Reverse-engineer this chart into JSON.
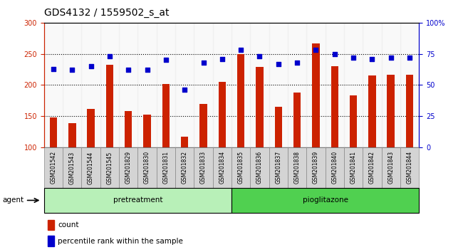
{
  "title": "GDS4132 / 1559502_s_at",
  "categories": [
    "GSM201542",
    "GSM201543",
    "GSM201544",
    "GSM201545",
    "GSM201829",
    "GSM201830",
    "GSM201831",
    "GSM201832",
    "GSM201833",
    "GSM201834",
    "GSM201835",
    "GSM201836",
    "GSM201837",
    "GSM201838",
    "GSM201839",
    "GSM201840",
    "GSM201841",
    "GSM201842",
    "GSM201843",
    "GSM201844"
  ],
  "count_values": [
    148,
    139,
    162,
    233,
    158,
    153,
    202,
    117,
    170,
    205,
    250,
    229,
    165,
    188,
    267,
    230,
    183,
    215,
    216,
    216
  ],
  "percentile_values": [
    63,
    62,
    65,
    73,
    62,
    62,
    70,
    46,
    68,
    71,
    78,
    73,
    67,
    68,
    78,
    75,
    72,
    71,
    72,
    72
  ],
  "pretreatment_count": 10,
  "pioglitazone_count": 10,
  "ylim_left": [
    100,
    300
  ],
  "ylim_right": [
    0,
    100
  ],
  "yticks_left": [
    100,
    150,
    200,
    250,
    300
  ],
  "yticks_right": [
    0,
    25,
    50,
    75,
    100
  ],
  "ytick_labels_right": [
    "0",
    "25",
    "50",
    "75",
    "100%"
  ],
  "bar_color": "#cc2200",
  "dot_color": "#0000cc",
  "label_pretreatment": "pretreatment",
  "label_pioglitazone": "pioglitazone",
  "agent_label": "agent",
  "legend_count": "count",
  "legend_percentile": "percentile rank within the sample",
  "title_fontsize": 10,
  "tick_fontsize": 7,
  "cell_bg_color": "#d4d4d4",
  "cell_border_color": "#888888",
  "plot_bg": "#ffffff",
  "pre_green": "#b8f0b8",
  "pio_green": "#50d050"
}
